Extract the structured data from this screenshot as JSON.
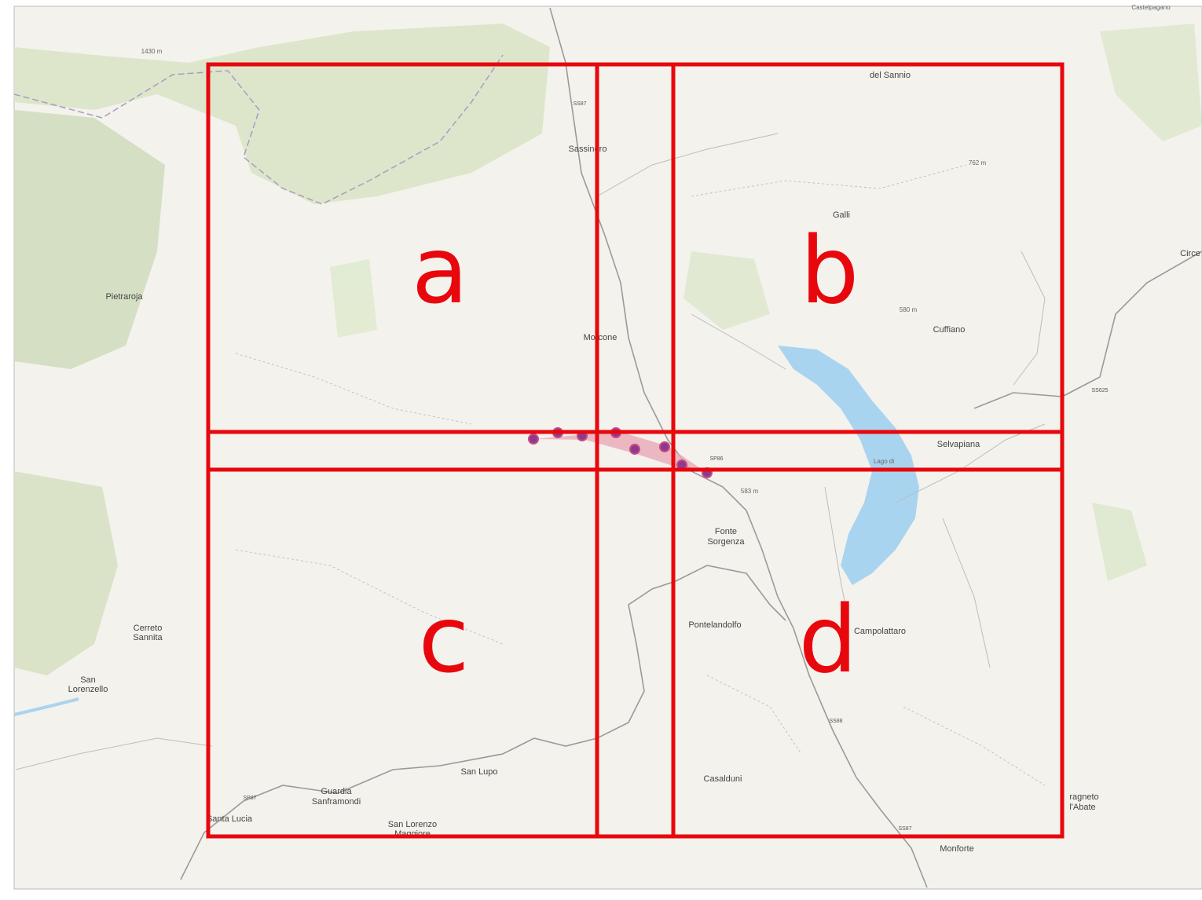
{
  "map": {
    "quadrants": [
      "a",
      "b",
      "c",
      "d"
    ],
    "places": [
      "del Sannio",
      "Sassinoro",
      "Galli",
      "Pietraroja",
      "Morcone",
      "Cuffiano",
      "Selvapiana",
      "Lago di",
      "Fonte",
      "Sorgenza",
      "Pontelandolfo",
      "Campolattaro",
      "Cerreto",
      "Sannita",
      "San",
      "Lorenzello",
      "Casalduni",
      "San Lupo",
      "Guardia",
      "Sanframondi",
      "Santa Lucia",
      "San Lorenzo",
      "Maggiore",
      "ragneto",
      "l'Abate",
      "Monforte",
      "Circe",
      "Castelpagano"
    ],
    "roads": [
      "SS87",
      "SP86",
      "SS625",
      "SS88",
      "SP87",
      "SS87"
    ],
    "elevations": [
      "1430 m",
      "762 m",
      "580 m",
      "583 m"
    ]
  }
}
